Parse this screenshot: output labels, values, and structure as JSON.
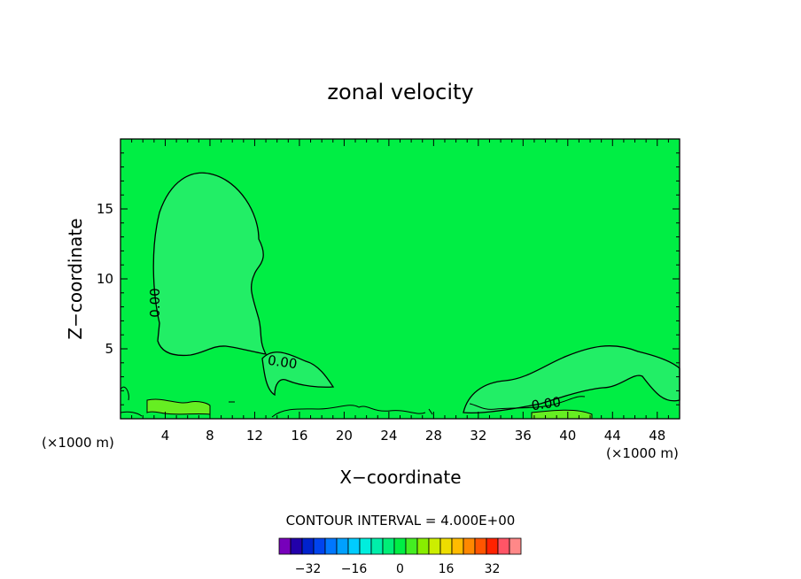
{
  "chart_data": {
    "type": "contour",
    "title": "zonal velocity",
    "xlabel": "X−coordinate",
    "ylabel": "Z−coordinate",
    "x_unit_left": "(×1000 m)",
    "x_unit_right": "(×1000 m)",
    "xlim": [
      0,
      50
    ],
    "ylim": [
      0,
      20
    ],
    "x_ticks": [
      4,
      8,
      12,
      16,
      20,
      24,
      28,
      32,
      36,
      40,
      44,
      48
    ],
    "y_ticks": [
      5,
      10,
      15
    ],
    "contour_interval_label": "CONTOUR INTERVAL = 4.000E+00",
    "contour_labels": [
      "0.00",
      "0.00",
      "0.00"
    ],
    "background_fill_color": "#00ee44",
    "pocket_fill_color": "#22ee66",
    "colorbar": {
      "colors": [
        "#7700bb",
        "#2200aa",
        "#0022cc",
        "#0044ee",
        "#0077ff",
        "#00a0ff",
        "#00ccff",
        "#00eedd",
        "#00eeaa",
        "#00ee77",
        "#00ee44",
        "#44ee22",
        "#88ee00",
        "#ccee00",
        "#eedd00",
        "#ffbb00",
        "#ff8800",
        "#ff5500",
        "#ff2200",
        "#ff5566",
        "#ff8888"
      ],
      "tick_values": [
        -32,
        -16,
        0,
        16,
        32
      ],
      "tick_labels": [
        "−32",
        "−16",
        "0",
        "16",
        "32"
      ]
    }
  }
}
